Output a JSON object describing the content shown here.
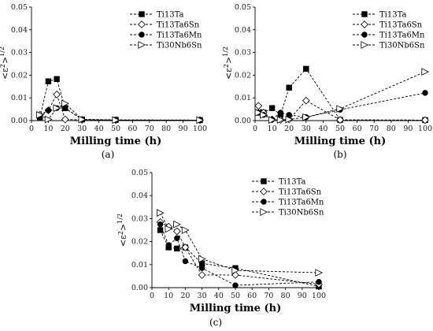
{
  "chart_data": [
    {
      "type": "line",
      "panel_label": "(a)",
      "xlabel": "Milling time (h)",
      "ylabel": "<ε²>^1/2",
      "xlim": [
        0,
        100
      ],
      "ylim": [
        0,
        0.05
      ],
      "xticks": [
        0,
        10,
        20,
        30,
        40,
        50,
        60,
        70,
        80,
        90,
        100
      ],
      "yticks": [
        0.0,
        0.01,
        0.02,
        0.03,
        0.04,
        0.05
      ],
      "legend_position": "top-right",
      "series": [
        {
          "name": "Ti13Ta",
          "marker": "square",
          "x": [
            5,
            10,
            15,
            20,
            30,
            50,
            100
          ],
          "y": [
            0.0015,
            0.0173,
            0.0183,
            0.0055,
            0.0005,
            0.0003,
            0.0002
          ]
        },
        {
          "name": "Ti13Ta6Sn",
          "marker": "diamond-open",
          "x": [
            5,
            10,
            15,
            20,
            30,
            50,
            100
          ],
          "y": [
            0.0025,
            0.0045,
            0.0115,
            0.0005,
            0.0003,
            0.0002,
            0.0002
          ]
        },
        {
          "name": "Ti13Ta6Mn",
          "marker": "circle",
          "x": [
            5,
            10,
            15,
            20,
            30,
            50,
            100
          ],
          "y": [
            0.0015,
            0.0045,
            0.0055,
            0.0055,
            0.0005,
            0.0003,
            0.0002
          ]
        },
        {
          "name": "Ti30Nb6Sn",
          "marker": "triangle-right-open",
          "x": [
            5,
            10,
            15,
            20,
            30,
            50,
            100
          ],
          "y": [
            0.0025,
            0.0005,
            0.0055,
            0.0075,
            0.0005,
            0.0002,
            0.0002
          ]
        }
      ]
    },
    {
      "type": "line",
      "panel_label": "(b)",
      "xlabel": "Milling time (h)",
      "ylabel": "<ε²>^1/2",
      "xlim": [
        0,
        100
      ],
      "ylim": [
        0,
        0.05
      ],
      "xticks": [
        0,
        10,
        20,
        30,
        40,
        50,
        60,
        70,
        80,
        90,
        100
      ],
      "yticks": [
        0.0,
        0.01,
        0.02,
        0.03,
        0.04,
        0.05
      ],
      "legend_position": "top-right",
      "series": [
        {
          "name": "Ti13Ta",
          "marker": "square",
          "x": [
            2,
            5,
            10,
            15,
            20,
            30,
            50,
            100
          ],
          "y": [
            0.0035,
            0.0035,
            0.0055,
            0.0025,
            0.0145,
            0.0228,
            0.0003,
            0.0002
          ]
        },
        {
          "name": "Ti13Ta6Sn",
          "marker": "diamond-open",
          "x": [
            2,
            5,
            10,
            15,
            20,
            30,
            50,
            100
          ],
          "y": [
            0.0065,
            0.0035,
            0.0005,
            0.0003,
            0.0005,
            0.0088,
            0.0003,
            0.0002
          ]
        },
        {
          "name": "Ti13Ta6Mn",
          "marker": "circle",
          "x": [
            2,
            5,
            10,
            15,
            20,
            30,
            50,
            100
          ],
          "y": [
            0.0035,
            0.0025,
            0.0005,
            0.0035,
            0.0025,
            0.0015,
            0.0048,
            0.0122
          ]
        },
        {
          "name": "Ti30Nb6Sn",
          "marker": "triangle-right-open",
          "x": [
            2,
            5,
            10,
            15,
            20,
            30,
            50,
            100
          ],
          "y": [
            0.0035,
            0.0025,
            0.0003,
            0.0003,
            0.0005,
            0.0015,
            0.0052,
            0.0215
          ]
        }
      ]
    },
    {
      "type": "line",
      "panel_label": "(c)",
      "xlabel": "Milling time (h)",
      "ylabel": "<ε²>^1/2",
      "xlim": [
        0,
        100
      ],
      "ylim": [
        0,
        0.05
      ],
      "xticks": [
        0,
        10,
        20,
        30,
        40,
        50,
        60,
        70,
        80,
        90,
        100
      ],
      "yticks": [
        0.0,
        0.01,
        0.02,
        0.03,
        0.04,
        0.05
      ],
      "legend_position": "top-right",
      "series": [
        {
          "name": "Ti13Ta",
          "marker": "square",
          "x": [
            5,
            10,
            15,
            20,
            30,
            50,
            100
          ],
          "y": [
            0.025,
            0.0175,
            0.017,
            0.0175,
            0.0105,
            0.0085,
            0.0005
          ]
        },
        {
          "name": "Ti13Ta6Sn",
          "marker": "diamond-open",
          "x": [
            5,
            10,
            15,
            20,
            30,
            50,
            100
          ],
          "y": [
            0.0285,
            0.0265,
            0.0245,
            0.0175,
            0.0055,
            0.0055,
            0.0015
          ]
        },
        {
          "name": "Ti13Ta6Mn",
          "marker": "circle",
          "x": [
            5,
            10,
            15,
            20,
            30,
            50,
            100
          ],
          "y": [
            0.0275,
            0.0185,
            0.0215,
            0.0115,
            0.0085,
            0.001,
            0.0025
          ]
        },
        {
          "name": "Ti30Nb6Sn",
          "marker": "triangle-right-open",
          "x": [
            5,
            10,
            15,
            20,
            30,
            50,
            100
          ],
          "y": [
            0.0325,
            0.0255,
            0.0275,
            0.025,
            0.0125,
            0.0075,
            0.0065
          ]
        }
      ]
    }
  ]
}
